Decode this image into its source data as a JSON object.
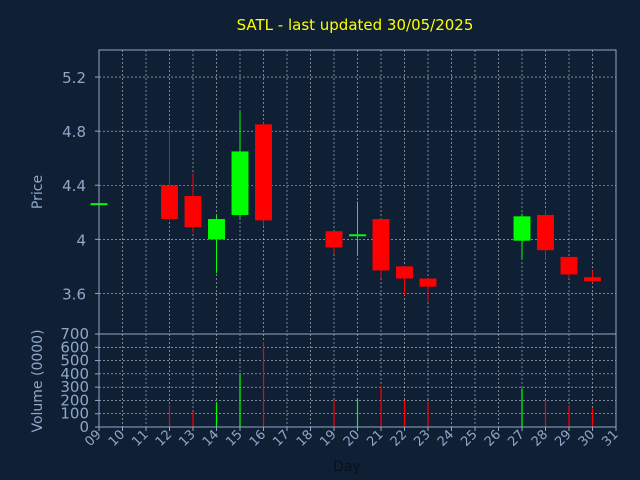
{
  "chart_data": [
    {
      "type": "candlestick",
      "title": "SATL - last updated 30/05/2025",
      "ylabel": "Price",
      "xlabel": "Day",
      "ylim": [
        3.3,
        5.4
      ],
      "yticks": [
        "5.2",
        "4.8",
        "4.4",
        "4",
        "3.6"
      ],
      "ytick_values": [
        5.2,
        4.8,
        4.4,
        4.0,
        3.6
      ],
      "grid": true,
      "days": [
        "09",
        "10",
        "11",
        "12",
        "13",
        "14",
        "15",
        "16",
        "17",
        "18",
        "19",
        "20",
        "21",
        "22",
        "23",
        "24",
        "25",
        "26",
        "27",
        "28",
        "29",
        "30",
        "31"
      ],
      "candles": [
        {
          "day": "09",
          "open": 4.26,
          "high": 4.26,
          "low": 4.26,
          "close": 4.26
        },
        {
          "day": "12",
          "open": 4.4,
          "high": 4.82,
          "low": 4.14,
          "close": 4.15
        },
        {
          "day": "13",
          "open": 4.32,
          "high": 4.49,
          "low": 4.05,
          "close": 4.09
        },
        {
          "day": "14",
          "open": 4.0,
          "high": 4.18,
          "low": 3.75,
          "close": 4.15
        },
        {
          "day": "15",
          "open": 4.18,
          "high": 4.94,
          "low": 4.16,
          "close": 4.65
        },
        {
          "day": "16",
          "open": 4.85,
          "high": 4.86,
          "low": 4.1,
          "close": 4.14
        },
        {
          "day": "19",
          "open": 4.06,
          "high": 4.06,
          "low": 3.89,
          "close": 3.94
        },
        {
          "day": "20",
          "open": 4.02,
          "high": 4.28,
          "low": 3.88,
          "close": 4.03
        },
        {
          "day": "21",
          "open": 4.15,
          "high": 4.15,
          "low": 3.71,
          "close": 3.77
        },
        {
          "day": "22",
          "open": 3.8,
          "high": 3.8,
          "low": 3.59,
          "close": 3.71
        },
        {
          "day": "23",
          "open": 3.71,
          "high": 3.71,
          "low": 3.54,
          "close": 3.65
        },
        {
          "day": "27",
          "open": 3.99,
          "high": 4.19,
          "low": 3.85,
          "close": 4.17
        },
        {
          "day": "28",
          "open": 4.18,
          "high": 4.22,
          "low": 3.85,
          "close": 3.92
        },
        {
          "day": "29",
          "open": 3.87,
          "high": 3.87,
          "low": 3.72,
          "close": 3.74
        },
        {
          "day": "30",
          "open": 3.72,
          "high": 3.77,
          "low": 3.68,
          "close": 3.69
        }
      ],
      "up_color": "#00ff00",
      "down_color": "#ff0000"
    },
    {
      "type": "bar",
      "ylabel": "Volume (0000)",
      "xlabel": "Day",
      "ylim": [
        0,
        700
      ],
      "yticks": [
        "700",
        "600",
        "500",
        "400",
        "300",
        "200",
        "100",
        "0"
      ],
      "ytick_values": [
        700,
        600,
        500,
        400,
        300,
        200,
        100,
        0
      ],
      "categories": [
        "12",
        "13",
        "14",
        "15",
        "16",
        "19",
        "20",
        "21",
        "22",
        "23",
        "27",
        "28",
        "29",
        "30"
      ],
      "values": [
        165,
        115,
        185,
        395,
        640,
        200,
        215,
        310,
        200,
        185,
        290,
        200,
        165,
        140
      ],
      "colors": [
        "#ff0000",
        "#ff0000",
        "#00ff00",
        "#00ff00",
        "#ff0000",
        "#ff0000",
        "#00ff00",
        "#ff0000",
        "#ff0000",
        "#ff0000",
        "#00ff00",
        "#ff0000",
        "#ff0000",
        "#ff0000"
      ]
    }
  ],
  "colors": {
    "background": "#0f2035",
    "axis": "#8fa8c6",
    "title": "#ffff00",
    "grid": "#ffffff"
  }
}
